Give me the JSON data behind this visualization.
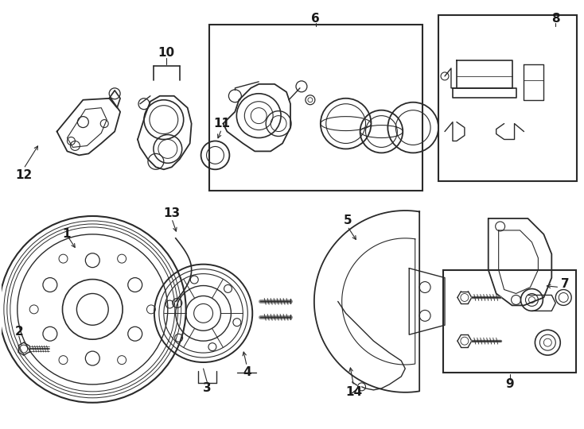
{
  "background_color": "#ffffff",
  "line_color": "#2a2a2a",
  "fig_width": 7.34,
  "fig_height": 5.4,
  "dpi": 100,
  "label_fontsize": 11,
  "label_fontweight": "bold"
}
